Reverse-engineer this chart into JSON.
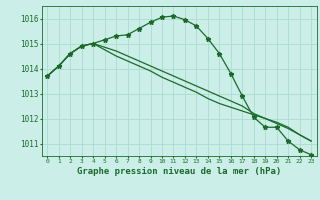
{
  "title": "Graphe pression niveau de la mer (hPa)",
  "background_color": "#cceee8",
  "grid_color": "#aaddcc",
  "line_color": "#1a6b2a",
  "hours": [
    0,
    1,
    2,
    3,
    4,
    5,
    6,
    7,
    8,
    9,
    10,
    11,
    12,
    13,
    14,
    15,
    16,
    17,
    18,
    19,
    20,
    21,
    22,
    23
  ],
  "line1": [
    1013.7,
    1014.1,
    1014.6,
    1014.9,
    1015.0,
    1015.15,
    1015.3,
    1015.35,
    1015.6,
    1015.85,
    1016.05,
    1016.1,
    1015.95,
    1015.7,
    1015.2,
    1014.6,
    1013.8,
    1012.9,
    1012.05,
    1011.65,
    1011.65,
    1011.1,
    1010.75,
    1010.55
  ],
  "line2": [
    1013.7,
    1014.1,
    1014.6,
    1014.9,
    1015.0,
    1014.85,
    1014.7,
    1014.5,
    1014.3,
    1014.1,
    1013.9,
    1013.7,
    1013.5,
    1013.3,
    1013.1,
    1012.9,
    1012.7,
    1012.5,
    1012.2,
    1012.0,
    1011.8,
    1011.6,
    1011.35,
    1011.1
  ],
  "line3": [
    1013.7,
    1014.1,
    1014.6,
    1014.9,
    1015.0,
    1014.75,
    1014.5,
    1014.3,
    1014.1,
    1013.9,
    1013.65,
    1013.45,
    1013.25,
    1013.05,
    1012.8,
    1012.6,
    1012.45,
    1012.3,
    1012.15,
    1012.0,
    1011.85,
    1011.65,
    1011.35,
    1011.1
  ],
  "ylim": [
    1010.5,
    1016.5
  ],
  "yticks": [
    1011,
    1012,
    1013,
    1014,
    1015,
    1016
  ],
  "xlabel_fontsize": 6.5,
  "ytick_fontsize": 5.5,
  "xtick_fontsize": 4.5,
  "marker": "*",
  "marker_size": 3.5,
  "linewidth": 0.9
}
